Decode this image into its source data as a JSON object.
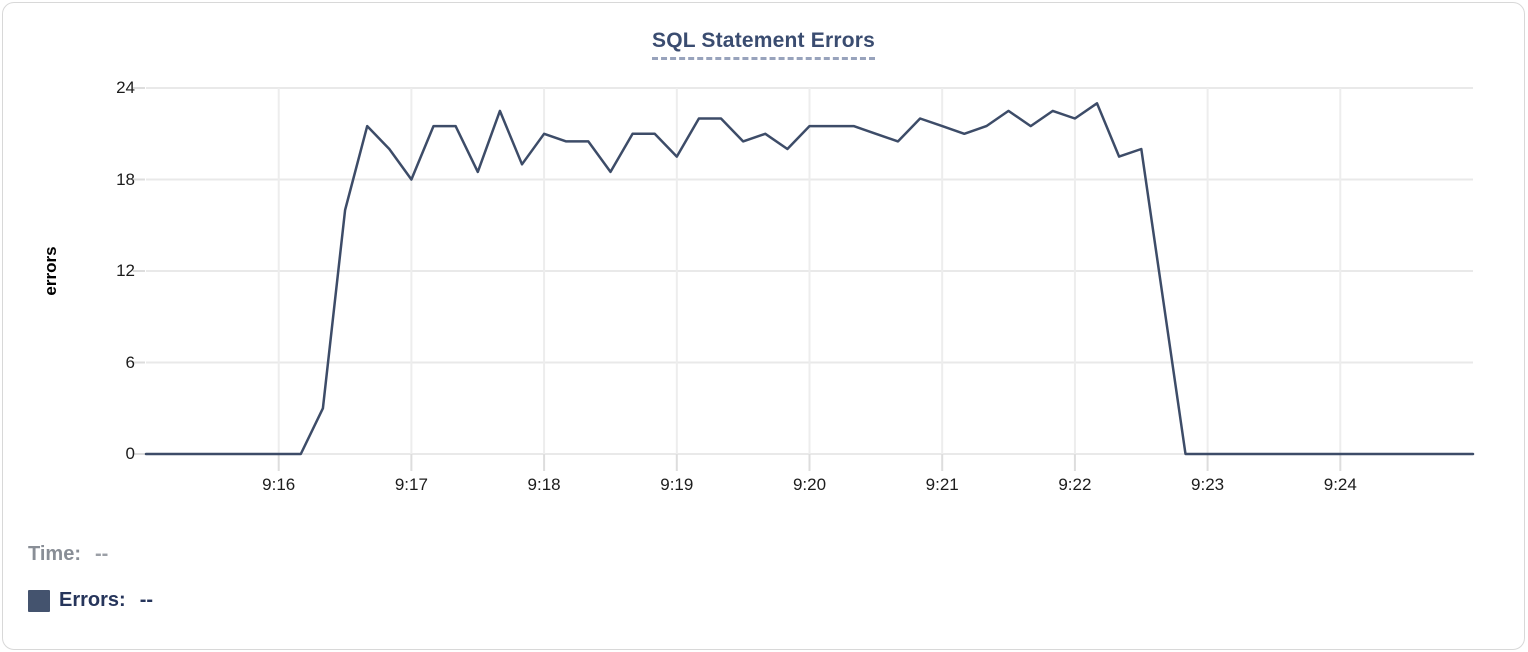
{
  "chart_data": {
    "type": "line",
    "title": "SQL Statement Errors",
    "xlabel": "",
    "ylabel": "errors",
    "ylim": [
      0,
      24
    ],
    "yticks": [
      0,
      6,
      12,
      18,
      24
    ],
    "xtick_labels": [
      "9:16",
      "9:17",
      "9:18",
      "9:19",
      "9:20",
      "9:21",
      "9:22",
      "9:23",
      "9:24"
    ],
    "xtick_indices": [
      6,
      12,
      18,
      24,
      30,
      36,
      42,
      48,
      54
    ],
    "x_range": [
      "9:15:00",
      "9:25:00"
    ],
    "sample_interval_seconds": 10,
    "grid": true,
    "legend_position": "bottom-left",
    "x": [
      "9:15:00",
      "9:15:10",
      "9:15:20",
      "9:15:30",
      "9:15:40",
      "9:15:50",
      "9:16:00",
      "9:16:10",
      "9:16:20",
      "9:16:30",
      "9:16:40",
      "9:16:50",
      "9:17:00",
      "9:17:10",
      "9:17:20",
      "9:17:30",
      "9:17:40",
      "9:17:50",
      "9:18:00",
      "9:18:10",
      "9:18:20",
      "9:18:30",
      "9:18:40",
      "9:18:50",
      "9:19:00",
      "9:19:10",
      "9:19:20",
      "9:19:30",
      "9:19:40",
      "9:19:50",
      "9:20:00",
      "9:20:10",
      "9:20:20",
      "9:20:30",
      "9:20:40",
      "9:20:50",
      "9:21:00",
      "9:21:10",
      "9:21:20",
      "9:21:30",
      "9:21:40",
      "9:21:50",
      "9:22:00",
      "9:22:10",
      "9:22:20",
      "9:22:30",
      "9:22:40",
      "9:22:50",
      "9:23:00",
      "9:23:10",
      "9:23:20",
      "9:23:30",
      "9:23:40",
      "9:23:50",
      "9:24:00",
      "9:24:10",
      "9:24:20",
      "9:24:30",
      "9:24:40",
      "9:24:50",
      "9:25:00"
    ],
    "series": [
      {
        "name": "Errors",
        "color": "#3d4c68",
        "values": [
          0,
          0,
          0,
          0,
          0,
          0,
          0,
          0,
          3,
          16,
          21.5,
          20,
          18,
          21.5,
          21.5,
          18.5,
          22.5,
          19,
          21,
          20.5,
          20.5,
          18.5,
          21,
          21,
          19.5,
          22,
          22,
          20.5,
          21,
          20,
          21.5,
          21.5,
          21.5,
          21,
          20.5,
          22,
          21.5,
          21,
          21.5,
          22.5,
          21.5,
          22.5,
          22,
          23,
          19.5,
          20,
          10,
          0,
          0,
          0,
          0,
          0,
          0,
          0,
          0,
          0,
          0,
          0,
          0,
          0,
          0
        ]
      }
    ]
  },
  "legend": {
    "time_label": "Time:",
    "time_value": "--",
    "errors_label": "Errors:",
    "errors_value": "--",
    "swatch_color": "#44536e"
  },
  "colors": {
    "line": "#3d4c68",
    "title": "#3a4c70",
    "title_underline": "#98a3bc",
    "grid": "#e9e9e9",
    "vertical_grid": "#ededed",
    "tick": "#dddddd",
    "axis_text": "#1c1c1c",
    "time_label_gray": "#898e96",
    "errors_navy": "#26355b",
    "card_border": "#d8d8d8"
  }
}
